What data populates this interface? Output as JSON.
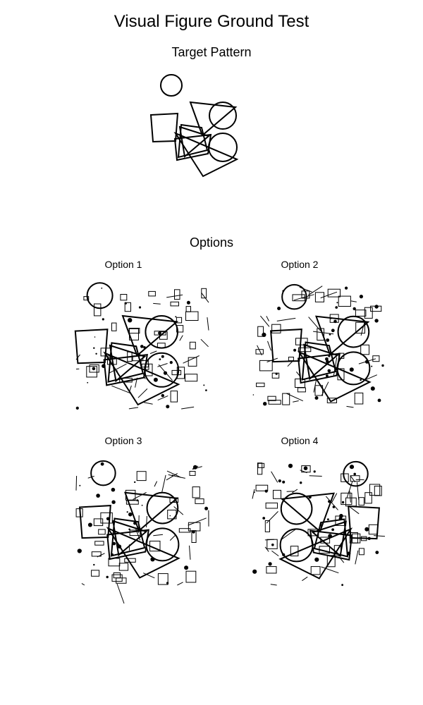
{
  "title": "Visual Figure Ground Test",
  "target_heading": "Target Pattern",
  "options_heading": "Options",
  "options": [
    {
      "label": "Option 1"
    },
    {
      "label": "Option 2"
    },
    {
      "label": "Option 3"
    },
    {
      "label": "Option 4"
    }
  ]
}
